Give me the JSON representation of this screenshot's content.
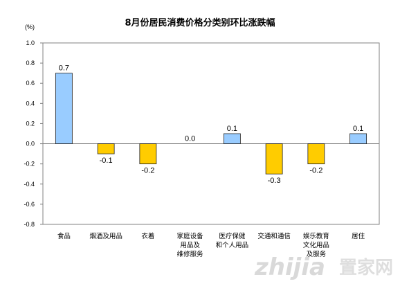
{
  "chart_data": {
    "type": "bar",
    "title": "8月份居民消费价格分类别环比涨跌幅",
    "ylabel": "(%)",
    "ylim": [
      -0.8,
      1.0
    ],
    "yticks": [
      "1.0",
      "0.8",
      "0.6",
      "0.4",
      "0.2",
      "0.0",
      "-0.2",
      "-0.4",
      "-0.6",
      "-0.8"
    ],
    "categories": [
      [
        "食品"
      ],
      [
        "烟酒及用品"
      ],
      [
        "衣着"
      ],
      [
        "家庭设备",
        "用品及",
        "维修服务"
      ],
      [
        "医疗保健",
        "和个人用品"
      ],
      [
        "交通和通信"
      ],
      [
        "娱乐教育",
        "文化用品",
        "及服务"
      ],
      [
        "居住"
      ]
    ],
    "values": [
      0.7,
      -0.1,
      -0.2,
      0.0,
      0.1,
      -0.3,
      -0.2,
      0.1
    ],
    "data_labels": [
      "0.7",
      "-0.1",
      "-0.2",
      "0.0",
      "0.1",
      "-0.3",
      "-0.2",
      "0.1"
    ],
    "colors": {
      "positive": "#99ccff",
      "negative": "#ffcc00",
      "border": "#1f1f1f",
      "frame": "#808080"
    },
    "grid": false,
    "legend": "none"
  },
  "watermark": {
    "text_a": "zhijia",
    "text_b": "置家网"
  }
}
